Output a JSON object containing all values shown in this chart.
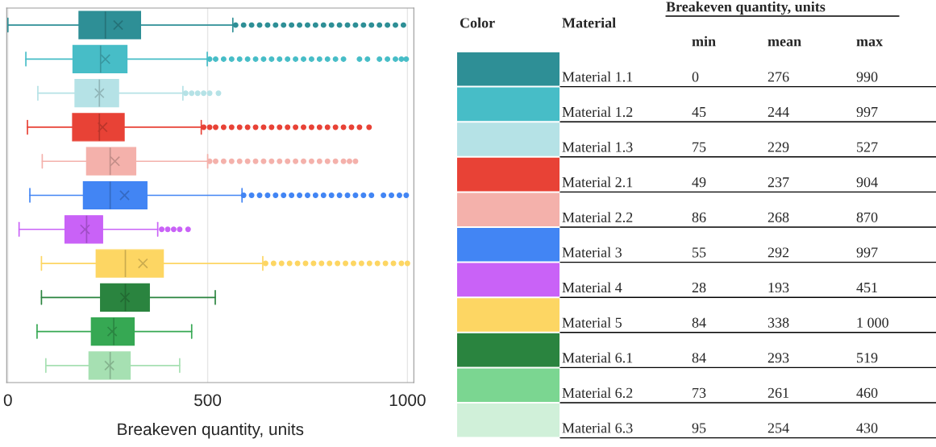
{
  "chart_data": [
    {
      "type": "box",
      "orientation": "horizontal",
      "xlabel": "Breakeven quantity, units",
      "categories": [
        null,
        null,
        null,
        null,
        null,
        null,
        null,
        null,
        null,
        null,
        null
      ],
      "colors": [
        "#2e8f96",
        "#47bdc7",
        "#b5e2e6",
        "#e84236",
        "#f4b1ab",
        "#4285f4",
        "#c962f7",
        "#fdd663",
        "#2a843f",
        "#36a853",
        "#a6e0b2"
      ],
      "boxes": [
        {
          "low": 0,
          "q1": 178,
          "median": 244,
          "q3": 332,
          "high": 563,
          "mean": 276,
          "outliers": [
            570,
            590,
            610,
            630,
            650,
            670,
            690,
            710,
            730,
            750,
            770,
            790,
            810,
            830,
            850,
            870,
            890,
            910,
            930,
            950,
            970,
            990
          ]
        },
        {
          "low": 45,
          "q1": 163,
          "median": 232,
          "q3": 298,
          "high": 499,
          "mean": 244,
          "outliers": [
            505,
            520,
            540,
            560,
            580,
            600,
            620,
            640,
            660,
            680,
            700,
            720,
            740,
            760,
            780,
            800,
            820,
            840,
            880,
            900,
            930,
            950,
            970,
            985,
            997
          ]
        },
        {
          "low": 75,
          "q1": 168,
          "median": 229,
          "q3": 277,
          "high": 438,
          "mean": 229,
          "outliers": [
            445,
            460,
            475,
            490,
            505,
            527
          ]
        },
        {
          "low": 49,
          "q1": 162,
          "median": 229,
          "q3": 291,
          "high": 484,
          "mean": 237,
          "outliers": [
            490,
            505,
            520,
            540,
            560,
            580,
            600,
            620,
            640,
            660,
            680,
            700,
            720,
            740,
            760,
            780,
            800,
            820,
            840,
            860,
            880,
            904
          ]
        },
        {
          "low": 86,
          "q1": 197,
          "median": 256,
          "q3": 320,
          "high": 500,
          "mean": 268,
          "outliers": [
            505,
            520,
            540,
            560,
            580,
            600,
            620,
            640,
            660,
            680,
            700,
            720,
            740,
            760,
            780,
            800,
            820,
            840,
            855,
            870
          ]
        },
        {
          "low": 55,
          "q1": 189,
          "median": 256,
          "q3": 348,
          "high": 586,
          "mean": 292,
          "outliers": [
            590,
            610,
            630,
            650,
            670,
            690,
            710,
            730,
            750,
            770,
            790,
            810,
            830,
            850,
            870,
            890,
            910,
            940,
            960,
            980,
            997
          ]
        },
        {
          "low": 28,
          "q1": 143,
          "median": 197,
          "q3": 237,
          "high": 375,
          "mean": 193,
          "outliers": [
            385,
            400,
            415,
            430,
            451
          ]
        },
        {
          "low": 84,
          "q1": 221,
          "median": 294,
          "q3": 389,
          "high": 638,
          "mean": 338,
          "outliers": [
            645,
            665,
            685,
            705,
            725,
            745,
            765,
            785,
            805,
            825,
            845,
            865,
            885,
            905,
            925,
            945,
            965,
            985,
            1000
          ]
        },
        {
          "low": 84,
          "q1": 232,
          "median": 294,
          "q3": 354,
          "high": 519,
          "mean": 293
        },
        {
          "low": 73,
          "q1": 209,
          "median": 265,
          "q3": 316,
          "high": 460,
          "mean": 261
        },
        {
          "low": 95,
          "q1": 203,
          "median": 256,
          "q3": 306,
          "high": 430,
          "mean": 254
        }
      ],
      "xlim": [
        -3,
        1016
      ],
      "xticks": [
        0,
        500,
        1000
      ],
      "grid": "x",
      "tick_labels": "x"
    },
    {
      "type": "other",
      "title": "Breakeven quantity, units",
      "annotations": [
        "Color",
        "Material"
      ],
      "categories": [
        "Material 1.1",
        "Material 1.2",
        "Material 1.3",
        "Material 2.1",
        "Material 2.2",
        "Material 3",
        "Material 4",
        "Material 5",
        "Material 6.1",
        "Material 6.2",
        "Material 6.3"
      ],
      "colors": [
        "#2e8f96",
        "#47bdc7",
        "#b5e2e6",
        "#e84236",
        "#f4b1ab",
        "#4285f4",
        "#c962f7",
        "#fdd663",
        "#2a843f",
        "#7bd691",
        "#d0f0d9"
      ],
      "series": [
        {
          "name": "min",
          "values": [
            0,
            45,
            75,
            49,
            86,
            55,
            28,
            84,
            84,
            73,
            95
          ]
        },
        {
          "name": "mean",
          "values": [
            276,
            244,
            229,
            237,
            268,
            292,
            193,
            338,
            293,
            261,
            254
          ]
        },
        {
          "name": "max",
          "values": [
            990,
            997,
            527,
            904,
            870,
            997,
            451,
            1000,
            519,
            460,
            430
          ]
        }
      ],
      "data_labels": true
    }
  ]
}
